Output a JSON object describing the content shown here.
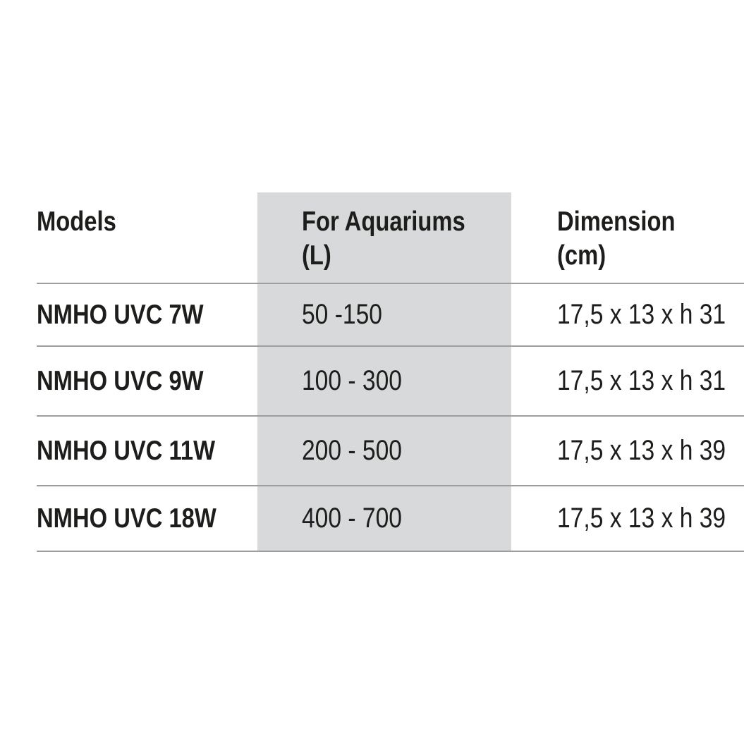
{
  "page": {
    "background": "#ffffff"
  },
  "table": {
    "header": {
      "models": "Models",
      "aquariums_line1": "For Aquariums",
      "aquariums_line2": "(L)",
      "dimension_line1": "Dimension",
      "dimension_line2": "(cm)"
    },
    "rows": [
      {
        "model": "NMHO UVC 7W",
        "aquariums": "50 -150",
        "dimension": "17,5 x 13 x h 31"
      },
      {
        "model": "NMHO UVC 9W",
        "aquariums": "100 - 300",
        "dimension": "17,5 x 13 x h 31"
      },
      {
        "model": "NMHO UVC 11W",
        "aquariums": "200 - 500",
        "dimension": "17,5 x 13 x h 39"
      },
      {
        "model": "NMHO UVC 18W",
        "aquariums": "400 - 700",
        "dimension": "17,5 x 13 x h 39"
      }
    ],
    "colors": {
      "highlight_column_bg": "#d8d9da",
      "text": "#1d1d1b",
      "rule": "#9e9e9e",
      "page_bg": "#ffffff"
    }
  }
}
